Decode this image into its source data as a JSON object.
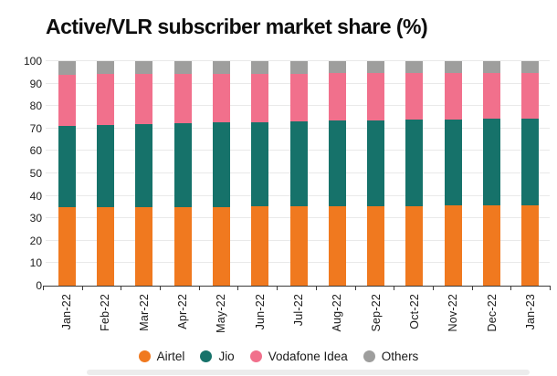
{
  "title": "Active/VLR subscriber market share (%)",
  "colors": {
    "airtel": "#F0791F",
    "jio": "#16726A",
    "vodafone_idea": "#F1708C",
    "others": "#9E9E9D",
    "grid": "#E9E9E9",
    "axis": "#3A3A3A",
    "text": "#1A1A1A",
    "title_text": "#0D0D0D"
  },
  "chart_data": {
    "type": "bar",
    "stacked": true,
    "stacked_to_100": true,
    "title": "Active/VLR subscriber market share (%)",
    "categories": [
      "Jan-22",
      "Feb-22",
      "Mar-22",
      "Apr-22",
      "May-22",
      "Jun-22",
      "Jul-22",
      "Aug-22",
      "Sep-22",
      "Oct-22",
      "Nov-22",
      "Dec-22",
      "Jan-23"
    ],
    "series": [
      {
        "name": "Airtel",
        "color": "#F0791F",
        "values": [
          34.9,
          34.9,
          35.0,
          35.0,
          35.1,
          35.2,
          35.3,
          35.4,
          35.4,
          35.5,
          35.6,
          35.8,
          35.9
        ]
      },
      {
        "name": "Jio",
        "color": "#16726A",
        "values": [
          36.4,
          36.8,
          37.1,
          37.4,
          37.6,
          37.7,
          37.9,
          38.1,
          38.2,
          38.3,
          38.4,
          38.5,
          38.7
        ]
      },
      {
        "name": "Vodafone Idea",
        "color": "#F1708C",
        "values": [
          22.8,
          22.5,
          22.2,
          22.0,
          21.7,
          21.6,
          21.3,
          21.1,
          21.0,
          20.9,
          20.7,
          20.5,
          20.2
        ]
      },
      {
        "name": "Others",
        "color": "#9E9E9D",
        "values": [
          5.9,
          5.8,
          5.7,
          5.6,
          5.6,
          5.5,
          5.5,
          5.4,
          5.4,
          5.3,
          5.3,
          5.2,
          5.2
        ]
      }
    ],
    "xlabel": "",
    "ylabel": "",
    "ylim": [
      0,
      100
    ],
    "yticks": [
      0,
      10,
      20,
      30,
      40,
      50,
      60,
      70,
      80,
      90,
      100
    ],
    "grid": true,
    "legend_position": "bottom"
  }
}
